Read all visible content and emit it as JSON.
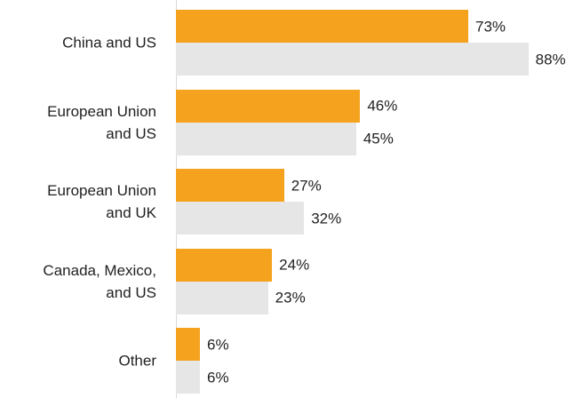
{
  "chart_data": {
    "type": "bar",
    "orientation": "horizontal",
    "categories": [
      "China and US",
      "European Union\nand US",
      "European Union\nand UK",
      "Canada, Mexico,\nand US",
      "Other"
    ],
    "series": [
      {
        "color": "#f5a31f",
        "values": [
          73,
          46,
          27,
          24,
          6
        ],
        "value_labels": [
          "73%",
          "46%",
          "27%",
          "24%",
          "6%"
        ]
      },
      {
        "color": "#e6e6e6",
        "values": [
          88,
          45,
          32,
          23,
          6
        ],
        "value_labels": [
          "88%",
          "45%",
          "32%",
          "23%",
          "6%"
        ]
      }
    ]
  }
}
